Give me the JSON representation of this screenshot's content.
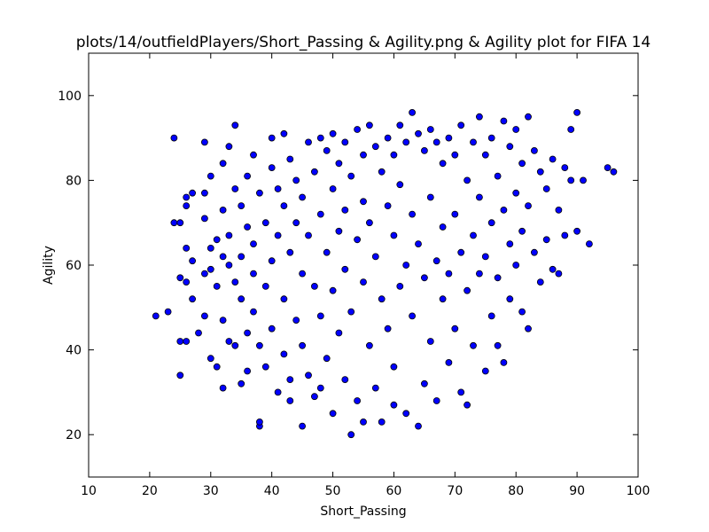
{
  "chart_data": {
    "type": "scatter",
    "title": "plots/14/outfieldPlayers/Short_Passing & Agility.png & Agility plot for FIFA 14",
    "xlabel": "Short_Passing",
    "ylabel": "Agility",
    "xlim": [
      10,
      100
    ],
    "ylim": [
      10,
      110
    ],
    "xticks": [
      10,
      20,
      30,
      40,
      50,
      60,
      70,
      80,
      90,
      100
    ],
    "yticks": [
      20,
      40,
      60,
      80,
      100
    ],
    "grid": false,
    "marker_color": "#0000ff",
    "marker_edge_color": "#000000",
    "series": [
      {
        "points": [
          [
            21,
            48
          ],
          [
            23,
            49
          ],
          [
            24,
            90
          ],
          [
            24,
            70
          ],
          [
            25,
            70
          ],
          [
            25,
            57
          ],
          [
            25,
            42
          ],
          [
            25,
            34
          ],
          [
            26,
            76
          ],
          [
            26,
            74
          ],
          [
            26,
            64
          ],
          [
            26,
            56
          ],
          [
            26,
            42
          ],
          [
            27,
            77
          ],
          [
            27,
            61
          ],
          [
            27,
            52
          ],
          [
            28,
            44
          ],
          [
            29,
            89
          ],
          [
            29,
            77
          ],
          [
            29,
            71
          ],
          [
            29,
            58
          ],
          [
            29,
            48
          ],
          [
            30,
            81
          ],
          [
            30,
            64
          ],
          [
            30,
            59
          ],
          [
            30,
            38
          ],
          [
            31,
            66
          ],
          [
            31,
            55
          ],
          [
            31,
            36
          ],
          [
            32,
            84
          ],
          [
            32,
            73
          ],
          [
            32,
            62
          ],
          [
            32,
            47
          ],
          [
            32,
            31
          ],
          [
            33,
            88
          ],
          [
            33,
            67
          ],
          [
            33,
            60
          ],
          [
            33,
            42
          ],
          [
            34,
            93
          ],
          [
            34,
            78
          ],
          [
            34,
            56
          ],
          [
            34,
            41
          ],
          [
            35,
            74
          ],
          [
            35,
            62
          ],
          [
            35,
            52
          ],
          [
            35,
            32
          ],
          [
            36,
            81
          ],
          [
            36,
            69
          ],
          [
            36,
            44
          ],
          [
            36,
            35
          ],
          [
            37,
            86
          ],
          [
            37,
            65
          ],
          [
            37,
            58
          ],
          [
            37,
            49
          ],
          [
            38,
            22
          ],
          [
            38,
            23
          ],
          [
            38,
            77
          ],
          [
            38,
            41
          ],
          [
            39,
            70
          ],
          [
            39,
            55
          ],
          [
            39,
            36
          ],
          [
            40,
            90
          ],
          [
            40,
            83
          ],
          [
            40,
            61
          ],
          [
            40,
            45
          ],
          [
            41,
            78
          ],
          [
            41,
            67
          ],
          [
            41,
            30
          ],
          [
            42,
            91
          ],
          [
            42,
            74
          ],
          [
            42,
            52
          ],
          [
            42,
            39
          ],
          [
            43,
            85
          ],
          [
            43,
            63
          ],
          [
            43,
            33
          ],
          [
            43,
            28
          ],
          [
            44,
            80
          ],
          [
            44,
            70
          ],
          [
            44,
            47
          ],
          [
            45,
            22
          ],
          [
            45,
            76
          ],
          [
            45,
            58
          ],
          [
            45,
            41
          ],
          [
            46,
            89
          ],
          [
            46,
            67
          ],
          [
            46,
            34
          ],
          [
            47,
            82
          ],
          [
            47,
            55
          ],
          [
            47,
            29
          ],
          [
            48,
            90
          ],
          [
            48,
            72
          ],
          [
            48,
            48
          ],
          [
            48,
            31
          ],
          [
            49,
            87
          ],
          [
            49,
            63
          ],
          [
            49,
            38
          ],
          [
            50,
            91
          ],
          [
            50,
            78
          ],
          [
            50,
            54
          ],
          [
            50,
            25
          ],
          [
            51,
            84
          ],
          [
            51,
            68
          ],
          [
            51,
            44
          ],
          [
            52,
            89
          ],
          [
            52,
            73
          ],
          [
            52,
            59
          ],
          [
            52,
            33
          ],
          [
            53,
            20
          ],
          [
            53,
            81
          ],
          [
            53,
            49
          ],
          [
            54,
            92
          ],
          [
            54,
            66
          ],
          [
            54,
            28
          ],
          [
            55,
            86
          ],
          [
            55,
            75
          ],
          [
            55,
            56
          ],
          [
            55,
            23
          ],
          [
            56,
            93
          ],
          [
            56,
            70
          ],
          [
            56,
            41
          ],
          [
            57,
            88
          ],
          [
            57,
            62
          ],
          [
            57,
            31
          ],
          [
            58,
            82
          ],
          [
            58,
            52
          ],
          [
            58,
            23
          ],
          [
            59,
            90
          ],
          [
            59,
            74
          ],
          [
            59,
            45
          ],
          [
            60,
            86
          ],
          [
            60,
            67
          ],
          [
            60,
            36
          ],
          [
            60,
            27
          ],
          [
            61,
            93
          ],
          [
            61,
            79
          ],
          [
            61,
            55
          ],
          [
            62,
            89
          ],
          [
            62,
            60
          ],
          [
            62,
            25
          ],
          [
            63,
            96
          ],
          [
            63,
            72
          ],
          [
            63,
            48
          ],
          [
            64,
            91
          ],
          [
            64,
            65
          ],
          [
            64,
            22
          ],
          [
            65,
            87
          ],
          [
            65,
            57
          ],
          [
            65,
            32
          ],
          [
            66,
            92
          ],
          [
            66,
            76
          ],
          [
            66,
            42
          ],
          [
            67,
            89
          ],
          [
            67,
            61
          ],
          [
            67,
            28
          ],
          [
            68,
            84
          ],
          [
            68,
            69
          ],
          [
            68,
            52
          ],
          [
            69,
            90
          ],
          [
            69,
            58
          ],
          [
            69,
            37
          ],
          [
            70,
            86
          ],
          [
            70,
            72
          ],
          [
            70,
            45
          ],
          [
            71,
            93
          ],
          [
            71,
            63
          ],
          [
            71,
            30
          ],
          [
            72,
            80
          ],
          [
            72,
            54
          ],
          [
            72,
            27
          ],
          [
            73,
            89
          ],
          [
            73,
            67
          ],
          [
            73,
            41
          ],
          [
            74,
            95
          ],
          [
            74,
            76
          ],
          [
            74,
            58
          ],
          [
            75,
            86
          ],
          [
            75,
            62
          ],
          [
            75,
            35
          ],
          [
            76,
            90
          ],
          [
            76,
            70
          ],
          [
            76,
            48
          ],
          [
            77,
            81
          ],
          [
            77,
            57
          ],
          [
            77,
            41
          ],
          [
            78,
            94
          ],
          [
            78,
            73
          ],
          [
            78,
            37
          ],
          [
            79,
            88
          ],
          [
            79,
            65
          ],
          [
            79,
            52
          ],
          [
            80,
            92
          ],
          [
            80,
            77
          ],
          [
            80,
            60
          ],
          [
            81,
            84
          ],
          [
            81,
            68
          ],
          [
            81,
            49
          ],
          [
            82,
            95
          ],
          [
            82,
            74
          ],
          [
            82,
            45
          ],
          [
            83,
            87
          ],
          [
            83,
            63
          ],
          [
            84,
            82
          ],
          [
            84,
            56
          ],
          [
            85,
            78
          ],
          [
            85,
            66
          ],
          [
            86,
            85
          ],
          [
            86,
            59
          ],
          [
            87,
            73
          ],
          [
            87,
            58
          ],
          [
            88,
            83
          ],
          [
            88,
            67
          ],
          [
            89,
            80
          ],
          [
            89,
            92
          ],
          [
            90,
            96
          ],
          [
            90,
            68
          ],
          [
            91,
            80
          ],
          [
            92,
            65
          ],
          [
            95,
            83
          ],
          [
            96,
            82
          ]
        ]
      }
    ]
  }
}
